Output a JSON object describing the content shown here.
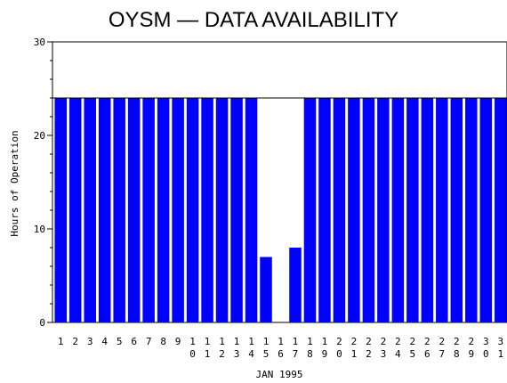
{
  "chart_data": {
    "type": "bar",
    "title": "OYSM  —  DATA AVAILABILITY",
    "ylabel": "Hours of Operation",
    "xlabel": "JAN 1995",
    "ylim": [
      0,
      30
    ],
    "yticks": [
      "0",
      "10",
      "20",
      "30"
    ],
    "reference_line": 24,
    "bar_color": "#0000ff",
    "categories": [
      "1",
      "2",
      "3",
      "4",
      "5",
      "6",
      "7",
      "8",
      "9",
      "10",
      "11",
      "12",
      "13",
      "14",
      "15",
      "16",
      "17",
      "18",
      "19",
      "20",
      "21",
      "22",
      "23",
      "24",
      "25",
      "26",
      "27",
      "28",
      "29",
      "30",
      "31"
    ],
    "values": [
      24,
      24,
      24,
      24,
      24,
      24,
      24,
      24,
      24,
      24,
      24,
      24,
      24,
      24,
      7,
      0,
      8,
      24,
      24,
      24,
      24,
      24,
      24,
      24,
      24,
      24,
      24,
      24,
      24,
      24,
      24
    ]
  }
}
